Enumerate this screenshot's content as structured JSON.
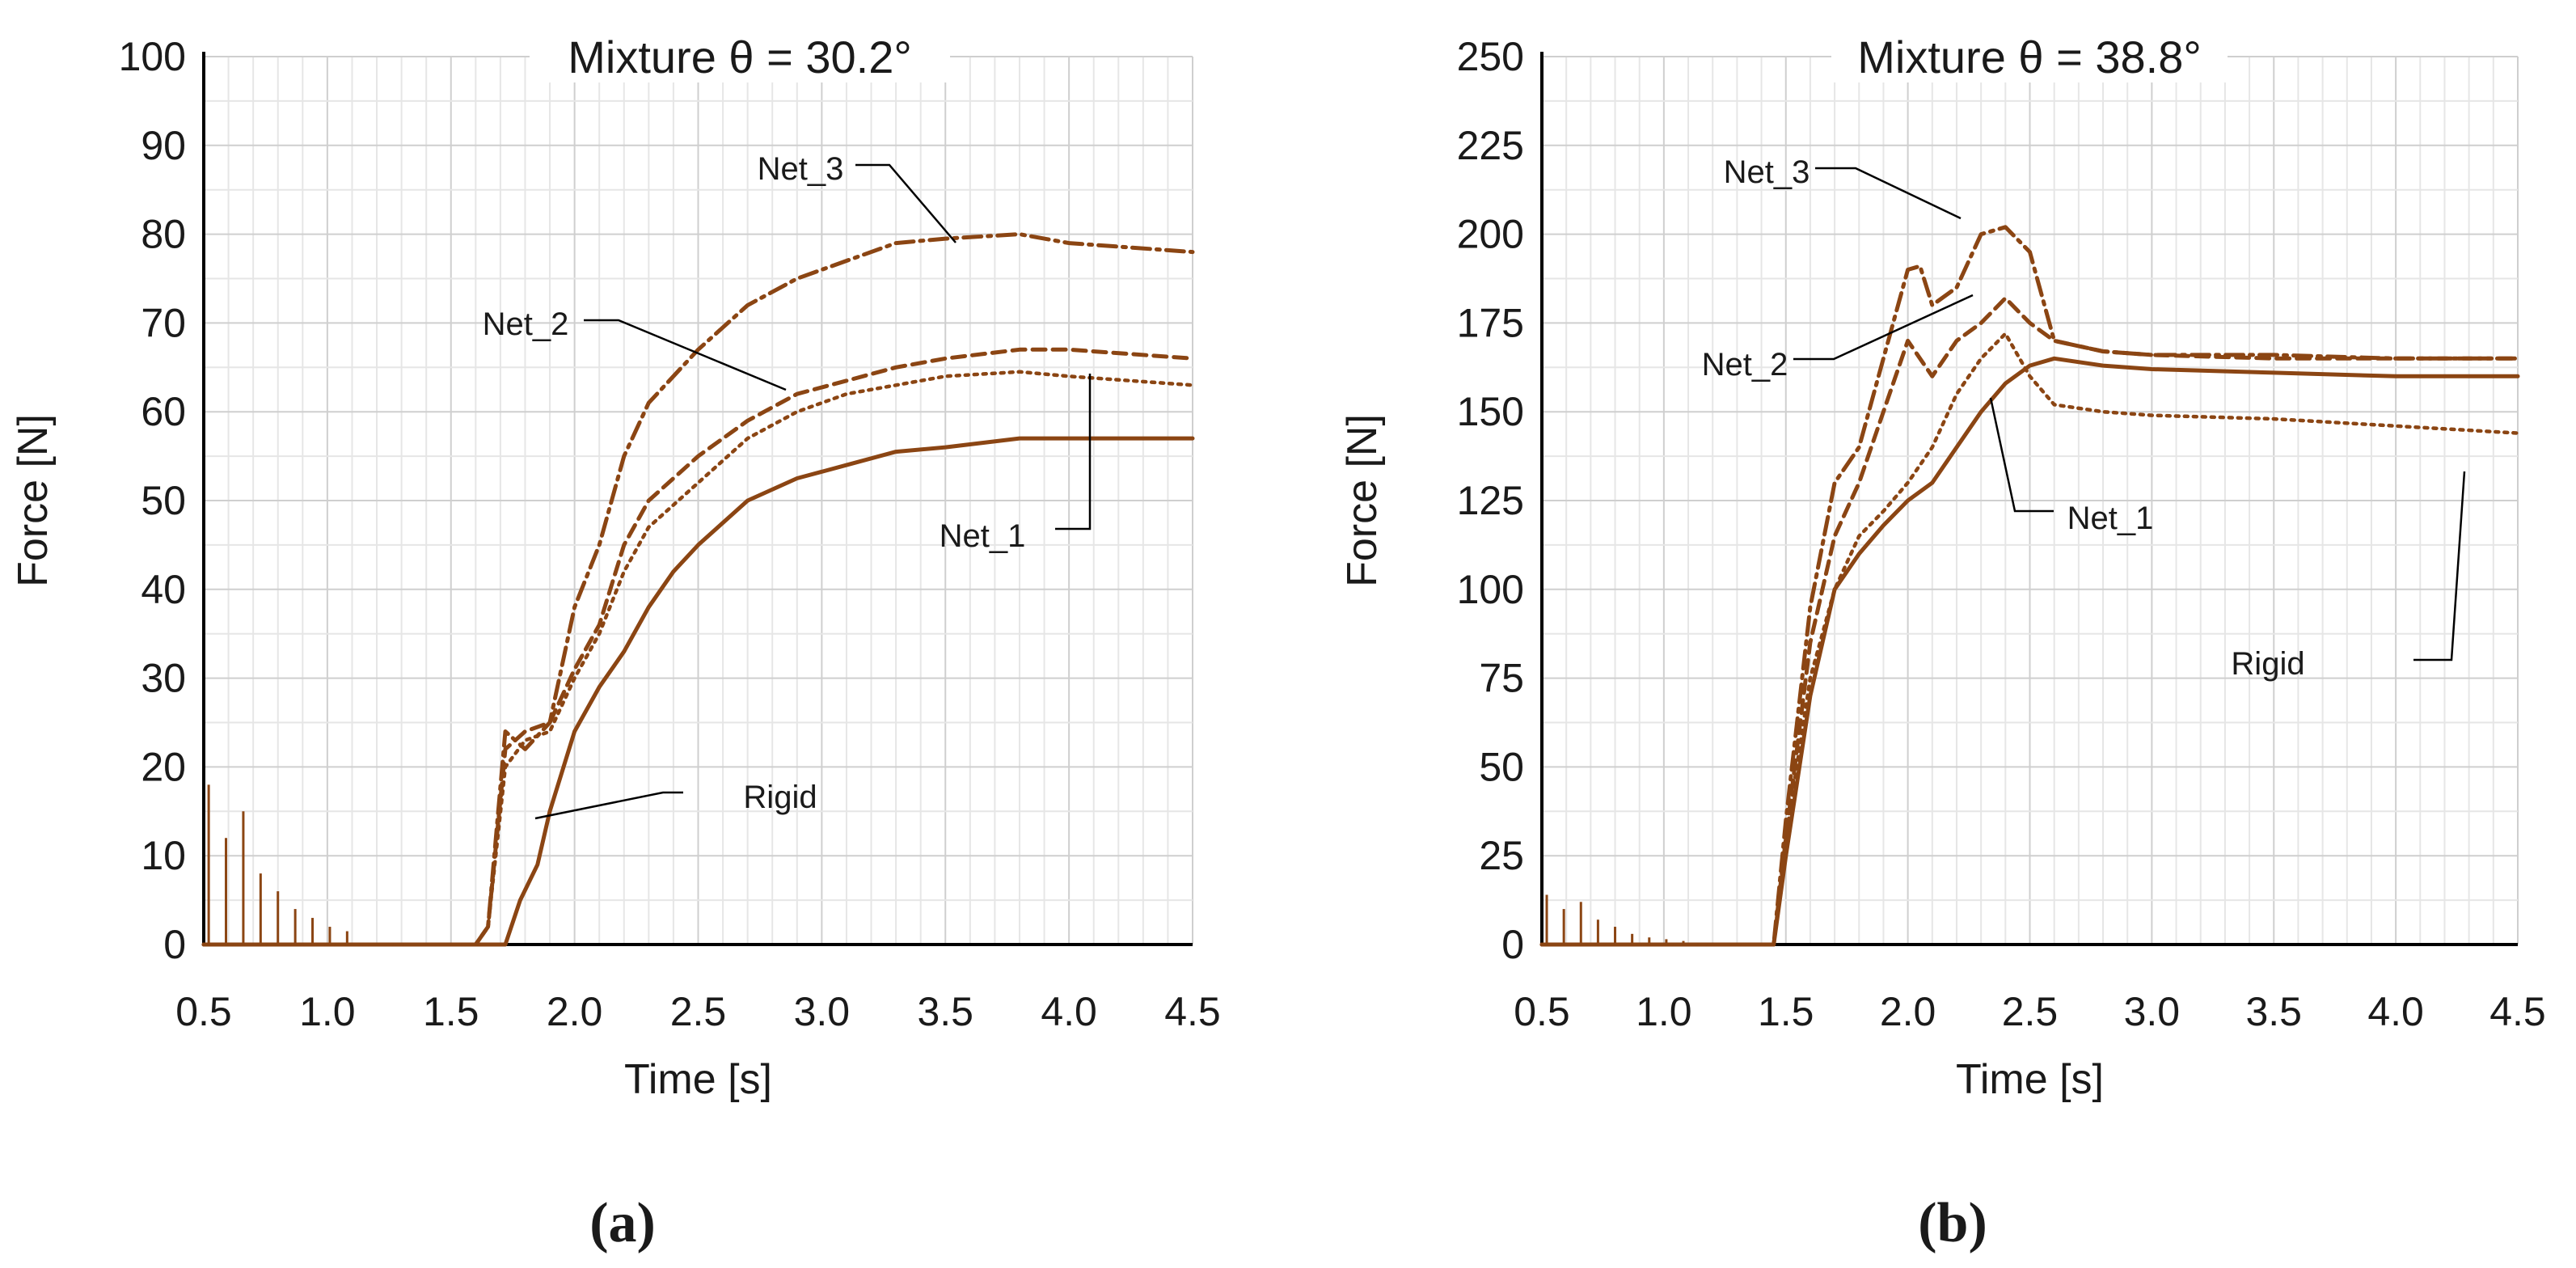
{
  "chart_data": [
    {
      "type": "line",
      "panel": "a",
      "caption": "(a)",
      "title": "Mixture  θ =  30.2°",
      "xlabel": "Time [s]",
      "ylabel": "Force [N]",
      "xlim": [
        0.5,
        4.5
      ],
      "ylim": [
        0,
        100
      ],
      "xticks": [
        "0.5",
        "1.0",
        "1.5",
        "2.0",
        "2.5",
        "3.0",
        "3.5",
        "4.0",
        "4.5"
      ],
      "yticks": [
        "0",
        "10",
        "20",
        "30",
        "40",
        "50",
        "60",
        "70",
        "80",
        "90",
        "100"
      ],
      "color": "#8B4513",
      "series": [
        {
          "name": "Rigid",
          "style": "solid",
          "x": [
            0.5,
            1.6,
            1.72,
            1.78,
            1.85,
            1.9,
            2.0,
            2.1,
            2.2,
            2.3,
            2.4,
            2.5,
            2.7,
            2.9,
            3.1,
            3.3,
            3.5,
            3.8,
            4.0,
            4.2,
            4.5
          ],
          "y": [
            0,
            0,
            0,
            5,
            9,
            15,
            24,
            29,
            33,
            38,
            42,
            45,
            50,
            52.5,
            54,
            55.5,
            56,
            57,
            57,
            57,
            57
          ]
        },
        {
          "name": "Net_1",
          "style": "dotted",
          "x": [
            0.5,
            1.6,
            1.65,
            1.72,
            1.8,
            1.9,
            2.0,
            2.1,
            2.2,
            2.3,
            2.5,
            2.7,
            2.9,
            3.1,
            3.3,
            3.5,
            3.8,
            4.0,
            4.5
          ],
          "y": [
            0,
            0,
            2,
            20,
            23,
            24,
            30,
            35,
            42,
            47,
            52,
            57,
            60,
            62,
            63,
            64,
            64.5,
            64,
            63
          ]
        },
        {
          "name": "Net_2",
          "style": "dashed",
          "x": [
            0.5,
            1.6,
            1.65,
            1.72,
            1.8,
            1.9,
            2.0,
            2.1,
            2.2,
            2.3,
            2.5,
            2.7,
            2.9,
            3.1,
            3.3,
            3.5,
            3.8,
            4.0,
            4.5
          ],
          "y": [
            0,
            0,
            2,
            22,
            24,
            25,
            31,
            36,
            45,
            50,
            55,
            59,
            62,
            63.5,
            65,
            66,
            67,
            67,
            66
          ]
        },
        {
          "name": "Net_3",
          "style": "dashdot",
          "x": [
            0.5,
            1.6,
            1.65,
            1.72,
            1.8,
            1.9,
            2.0,
            2.1,
            2.2,
            2.3,
            2.5,
            2.7,
            2.9,
            3.1,
            3.3,
            3.5,
            3.8,
            4.0,
            4.5
          ],
          "y": [
            0,
            0,
            2,
            24,
            22,
            25,
            38,
            45,
            55,
            61,
            67,
            72,
            75,
            77,
            79,
            79.5,
            80,
            79,
            78
          ]
        }
      ],
      "annotations": [
        {
          "text": "Net_3"
        },
        {
          "text": "Net_2"
        },
        {
          "text": "Net_1"
        },
        {
          "text": "Rigid"
        }
      ]
    },
    {
      "type": "line",
      "panel": "b",
      "caption": "(b)",
      "title": "Mixture θ = 38.8°",
      "xlabel": "Time [s]",
      "ylabel": "Force [N]",
      "xlim": [
        0.5,
        4.5
      ],
      "ylim": [
        0,
        250
      ],
      "xticks": [
        "0.5",
        "1.0",
        "1.5",
        "2.0",
        "2.5",
        "3.0",
        "3.5",
        "4.0",
        "4.5"
      ],
      "yticks": [
        "0",
        "25",
        "50",
        "75",
        "100",
        "125",
        "150",
        "175",
        "200",
        "225",
        "250"
      ],
      "color": "#8B4513",
      "series": [
        {
          "name": "Rigid",
          "style": "dotted",
          "x": [
            0.5,
            1.45,
            1.5,
            1.6,
            1.7,
            1.8,
            1.9,
            2.0,
            2.1,
            2.2,
            2.3,
            2.4,
            2.5,
            2.6,
            2.8,
            3.0,
            3.5,
            4.0,
            4.5
          ],
          "y": [
            0,
            0,
            30,
            75,
            100,
            115,
            122,
            130,
            140,
            155,
            165,
            172,
            160,
            152,
            150,
            149,
            148,
            146,
            144
          ]
        },
        {
          "name": "Net_1",
          "style": "solid",
          "x": [
            0.5,
            1.45,
            1.5,
            1.6,
            1.7,
            1.8,
            1.9,
            2.0,
            2.1,
            2.2,
            2.3,
            2.4,
            2.5,
            2.6,
            2.8,
            3.0,
            3.5,
            4.0,
            4.5
          ],
          "y": [
            0,
            0,
            25,
            70,
            100,
            110,
            118,
            125,
            130,
            140,
            150,
            158,
            163,
            165,
            163,
            162,
            161,
            160,
            160
          ]
        },
        {
          "name": "Net_2",
          "style": "dashed",
          "x": [
            0.5,
            1.45,
            1.5,
            1.6,
            1.7,
            1.8,
            1.9,
            2.0,
            2.1,
            2.2,
            2.3,
            2.4,
            2.5,
            2.6,
            2.8,
            3.0,
            3.5,
            4.0,
            4.5
          ],
          "y": [
            0,
            0,
            30,
            85,
            115,
            130,
            150,
            170,
            160,
            170,
            175,
            182,
            175,
            170,
            167,
            166,
            165,
            165,
            165
          ]
        },
        {
          "name": "Net_3",
          "style": "dashdot",
          "x": [
            0.5,
            1.45,
            1.5,
            1.6,
            1.7,
            1.8,
            1.9,
            2.0,
            2.05,
            2.1,
            2.2,
            2.3,
            2.4,
            2.5,
            2.6,
            2.8,
            3.0,
            3.5,
            4.0,
            4.5
          ],
          "y": [
            0,
            0,
            35,
            95,
            130,
            140,
            165,
            190,
            191,
            180,
            185,
            200,
            202,
            195,
            170,
            167,
            166,
            166,
            165,
            165
          ]
        }
      ],
      "annotations": [
        {
          "text": "Net_3"
        },
        {
          "text": "Net_2"
        },
        {
          "text": "Net_1"
        },
        {
          "text": "Rigid"
        }
      ]
    }
  ]
}
